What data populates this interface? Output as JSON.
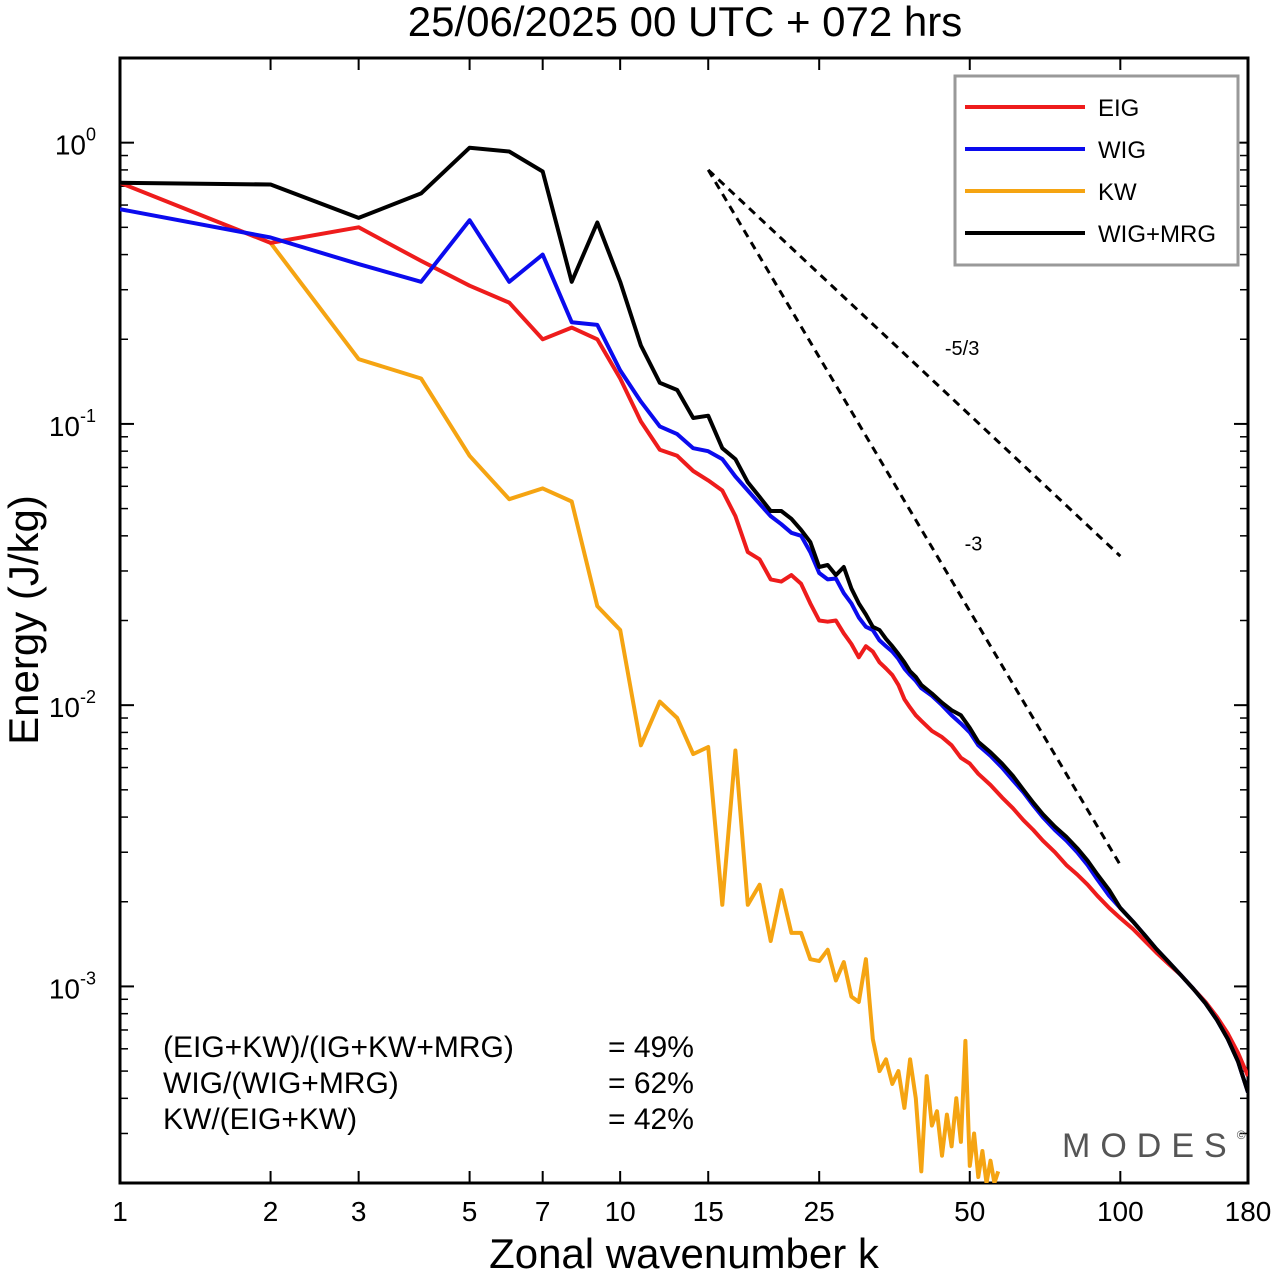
{
  "chart_data": {
    "type": "line",
    "title": "25/06/2025  00 UTC  + 072 hrs",
    "xlabel": "Zonal wavenumber k",
    "ylabel": "Energy (J/kg)",
    "xscale": "log",
    "yscale": "log",
    "xlim": [
      1,
      180
    ],
    "ylim": [
      0.0002,
      2.0
    ],
    "xticks": [
      1,
      2,
      3,
      5,
      7,
      10,
      15,
      25,
      50,
      100,
      180
    ],
    "xtick_labels": [
      "1",
      "2",
      "3",
      "5",
      "7",
      "10",
      "15",
      "25",
      "50",
      "100",
      "180"
    ],
    "yticks": [
      {
        "value": 1.0,
        "base": "10",
        "exp": "0"
      },
      {
        "value": 0.1,
        "base": "10",
        "exp": "-1"
      },
      {
        "value": 0.01,
        "base": "10",
        "exp": "-2"
      },
      {
        "value": 0.001,
        "base": "10",
        "exp": "-3"
      }
    ],
    "legend_position": "top-right",
    "grid": false,
    "series": [
      {
        "name": "EIG",
        "color": "#ee1c1c",
        "points": [
          [
            1,
            0.72
          ],
          [
            2,
            0.44
          ],
          [
            3,
            0.5
          ],
          [
            4,
            0.38
          ],
          [
            5,
            0.31
          ],
          [
            6,
            0.27
          ],
          [
            7,
            0.2
          ],
          [
            8,
            0.22
          ],
          [
            9,
            0.2
          ],
          [
            10,
            0.145
          ],
          [
            11,
            0.102
          ],
          [
            12,
            0.081
          ],
          [
            13,
            0.077
          ],
          [
            14,
            0.068
          ],
          [
            15,
            0.063
          ],
          [
            16,
            0.058
          ],
          [
            17,
            0.047
          ],
          [
            18,
            0.035
          ],
          [
            19,
            0.033
          ],
          [
            20,
            0.028
          ],
          [
            21,
            0.0275
          ],
          [
            22,
            0.029
          ],
          [
            23,
            0.027
          ],
          [
            24,
            0.023
          ],
          [
            25,
            0.02
          ],
          [
            26,
            0.0198
          ],
          [
            27,
            0.02
          ],
          [
            28,
            0.018
          ],
          [
            29,
            0.0165
          ],
          [
            30,
            0.0148
          ],
          [
            31,
            0.0162
          ],
          [
            32,
            0.0155
          ],
          [
            33,
            0.0142
          ],
          [
            34,
            0.0135
          ],
          [
            35,
            0.0128
          ],
          [
            36,
            0.0118
          ],
          [
            37,
            0.0105
          ],
          [
            38,
            0.0098
          ],
          [
            39,
            0.0092
          ],
          [
            40,
            0.0088
          ],
          [
            42,
            0.0081
          ],
          [
            44,
            0.0077
          ],
          [
            46,
            0.0072
          ],
          [
            48,
            0.0065
          ],
          [
            50,
            0.0062
          ],
          [
            52,
            0.0057
          ],
          [
            55,
            0.0052
          ],
          [
            58,
            0.0047
          ],
          [
            61,
            0.0043
          ],
          [
            64,
            0.0039
          ],
          [
            67,
            0.0036
          ],
          [
            70,
            0.0033
          ],
          [
            74,
            0.003
          ],
          [
            78,
            0.0027
          ],
          [
            82,
            0.0025
          ],
          [
            86,
            0.0023
          ],
          [
            90,
            0.0021
          ],
          [
            95,
            0.0019
          ],
          [
            100,
            0.00175
          ],
          [
            106,
            0.0016
          ],
          [
            112,
            0.00145
          ],
          [
            118,
            0.00132
          ],
          [
            125,
            0.0012
          ],
          [
            132,
            0.0011
          ],
          [
            140,
            0.00098
          ],
          [
            148,
            0.00088
          ],
          [
            156,
            0.00078
          ],
          [
            164,
            0.00068
          ],
          [
            172,
            0.00058
          ],
          [
            180,
            0.00048
          ]
        ]
      },
      {
        "name": "WIG",
        "color": "#0b0bee",
        "points": [
          [
            1,
            0.58
          ],
          [
            2,
            0.46
          ],
          [
            3,
            0.37
          ],
          [
            4,
            0.32
          ],
          [
            5,
            0.53
          ],
          [
            6,
            0.32
          ],
          [
            7,
            0.4
          ],
          [
            8,
            0.23
          ],
          [
            9,
            0.225
          ],
          [
            10,
            0.155
          ],
          [
            11,
            0.12
          ],
          [
            12,
            0.098
          ],
          [
            13,
            0.092
          ],
          [
            14,
            0.082
          ],
          [
            15,
            0.08
          ],
          [
            16,
            0.075
          ],
          [
            17,
            0.065
          ],
          [
            18,
            0.058
          ],
          [
            19,
            0.052
          ],
          [
            20,
            0.047
          ],
          [
            21,
            0.044
          ],
          [
            22,
            0.041
          ],
          [
            23,
            0.04
          ],
          [
            24,
            0.035
          ],
          [
            25,
            0.0295
          ],
          [
            26,
            0.028
          ],
          [
            27,
            0.0282
          ],
          [
            28,
            0.025
          ],
          [
            29,
            0.023
          ],
          [
            30,
            0.0205
          ],
          [
            31,
            0.019
          ],
          [
            32,
            0.0185
          ],
          [
            33,
            0.017
          ],
          [
            34,
            0.0162
          ],
          [
            35,
            0.0155
          ],
          [
            36,
            0.0146
          ],
          [
            37,
            0.0135
          ],
          [
            38,
            0.0128
          ],
          [
            39,
            0.0122
          ],
          [
            40,
            0.0115
          ],
          [
            42,
            0.0108
          ],
          [
            44,
            0.01
          ],
          [
            46,
            0.0092
          ],
          [
            48,
            0.0086
          ],
          [
            50,
            0.008
          ],
          [
            52,
            0.0072
          ],
          [
            55,
            0.0066
          ],
          [
            58,
            0.006
          ],
          [
            61,
            0.0054
          ],
          [
            64,
            0.0049
          ],
          [
            67,
            0.0044
          ],
          [
            70,
            0.004
          ],
          [
            74,
            0.0036
          ],
          [
            78,
            0.0033
          ],
          [
            82,
            0.003
          ],
          [
            86,
            0.0027
          ],
          [
            90,
            0.0024
          ],
          [
            95,
            0.0021
          ],
          [
            100,
            0.0019
          ],
          [
            106,
            0.0017
          ],
          [
            112,
            0.00152
          ],
          [
            118,
            0.00136
          ],
          [
            125,
            0.00122
          ],
          [
            132,
            0.0011
          ],
          [
            140,
            0.00098
          ],
          [
            148,
            0.00087
          ],
          [
            156,
            0.00076
          ],
          [
            164,
            0.00065
          ],
          [
            172,
            0.00054
          ],
          [
            180,
            0.00042
          ]
        ]
      },
      {
        "name": "KW",
        "color": "#f5a412",
        "points": [
          [
            2,
            0.44
          ],
          [
            3,
            0.17
          ],
          [
            4,
            0.145
          ],
          [
            5,
            0.077
          ],
          [
            6,
            0.054
          ],
          [
            7,
            0.059
          ],
          [
            8,
            0.053
          ],
          [
            9,
            0.0225
          ],
          [
            10,
            0.0185
          ],
          [
            11,
            0.0072
          ],
          [
            12,
            0.0103
          ],
          [
            13,
            0.009
          ],
          [
            14,
            0.0067
          ],
          [
            15,
            0.0071
          ],
          [
            16,
            0.00195
          ],
          [
            17,
            0.0069
          ],
          [
            18,
            0.00195
          ],
          [
            19,
            0.0023
          ],
          [
            20,
            0.00145
          ],
          [
            21,
            0.0022
          ],
          [
            22,
            0.00155
          ],
          [
            23,
            0.00155
          ],
          [
            24,
            0.00125
          ],
          [
            25,
            0.00123
          ],
          [
            26,
            0.00135
          ],
          [
            27,
            0.00105
          ],
          [
            28,
            0.00122
          ],
          [
            29,
            0.00092
          ],
          [
            30,
            0.00088
          ],
          [
            31,
            0.00125
          ],
          [
            32,
            0.00065
          ],
          [
            33,
            0.0005
          ],
          [
            34,
            0.00055
          ],
          [
            35,
            0.00045
          ],
          [
            36,
            0.0005
          ],
          [
            37,
            0.00037
          ],
          [
            38,
            0.00055
          ],
          [
            39,
            0.0004
          ],
          [
            40,
            0.00022
          ],
          [
            41,
            0.00048
          ],
          [
            42,
            0.00032
          ],
          [
            43,
            0.00036
          ],
          [
            44,
            0.00025
          ],
          [
            45,
            0.00035
          ],
          [
            46,
            0.00027
          ],
          [
            47,
            0.0004
          ],
          [
            48,
            0.00028
          ],
          [
            49,
            0.00064
          ],
          [
            50,
            0.00023
          ],
          [
            51,
            0.0003
          ],
          [
            52,
            0.00021
          ],
          [
            53,
            0.00026
          ],
          [
            54,
            0.0002
          ],
          [
            55,
            0.00024
          ],
          [
            56,
            0.0002
          ],
          [
            57,
            0.00022
          ]
        ]
      },
      {
        "name": "WIG+MRG",
        "color": "#000000",
        "points": [
          [
            1,
            0.72
          ],
          [
            2,
            0.71
          ],
          [
            3,
            0.54
          ],
          [
            4,
            0.66
          ],
          [
            5,
            0.96
          ],
          [
            6,
            0.93
          ],
          [
            7,
            0.79
          ],
          [
            8,
            0.32
          ],
          [
            9,
            0.52
          ],
          [
            10,
            0.32
          ],
          [
            11,
            0.19
          ],
          [
            12,
            0.14
          ],
          [
            13,
            0.132
          ],
          [
            14,
            0.105
          ],
          [
            15,
            0.107
          ],
          [
            16,
            0.082
          ],
          [
            17,
            0.075
          ],
          [
            18,
            0.062
          ],
          [
            19,
            0.055
          ],
          [
            20,
            0.049
          ],
          [
            21,
            0.049
          ],
          [
            22,
            0.046
          ],
          [
            23,
            0.042
          ],
          [
            24,
            0.038
          ],
          [
            25,
            0.031
          ],
          [
            26,
            0.0315
          ],
          [
            27,
            0.029
          ],
          [
            28,
            0.031
          ],
          [
            29,
            0.026
          ],
          [
            30,
            0.023
          ],
          [
            31,
            0.021
          ],
          [
            32,
            0.019
          ],
          [
            33,
            0.0185
          ],
          [
            34,
            0.0172
          ],
          [
            35,
            0.0162
          ],
          [
            36,
            0.0152
          ],
          [
            37,
            0.0142
          ],
          [
            38,
            0.0132
          ],
          [
            39,
            0.0126
          ],
          [
            40,
            0.0118
          ],
          [
            42,
            0.011
          ],
          [
            44,
            0.0102
          ],
          [
            46,
            0.0096
          ],
          [
            48,
            0.0092
          ],
          [
            50,
            0.0083
          ],
          [
            52,
            0.0074
          ],
          [
            55,
            0.0068
          ],
          [
            58,
            0.0062
          ],
          [
            61,
            0.0056
          ],
          [
            64,
            0.005
          ],
          [
            67,
            0.0045
          ],
          [
            70,
            0.0041
          ],
          [
            74,
            0.0037
          ],
          [
            78,
            0.0034
          ],
          [
            82,
            0.0031
          ],
          [
            86,
            0.0028
          ],
          [
            90,
            0.0025
          ],
          [
            95,
            0.0022
          ],
          [
            100,
            0.0019
          ],
          [
            106,
            0.0017
          ],
          [
            112,
            0.00152
          ],
          [
            118,
            0.00136
          ],
          [
            125,
            0.00122
          ],
          [
            132,
            0.0011
          ],
          [
            140,
            0.00098
          ],
          [
            148,
            0.00087
          ],
          [
            156,
            0.00076
          ],
          [
            164,
            0.00065
          ],
          [
            172,
            0.00054
          ],
          [
            180,
            0.00042
          ]
        ]
      }
    ],
    "reference_lines": [
      {
        "label": "-5/3",
        "slope": -1.6667,
        "x": [
          15,
          100
        ],
        "y_start": 0.8
      },
      {
        "label": "-3",
        "slope": -3,
        "x": [
          15,
          100
        ],
        "y_start": 0.8
      }
    ],
    "annotations": [
      {
        "label": "(EIG+KW)/(IG+KW+MRG)",
        "value": "= 49%"
      },
      {
        "label": "WIG/(WIG+MRG)",
        "value": "= 62%"
      },
      {
        "label": "KW/(EIG+KW)",
        "value": "= 42%"
      }
    ],
    "brand": "MODES",
    "brand_mark": "©"
  }
}
